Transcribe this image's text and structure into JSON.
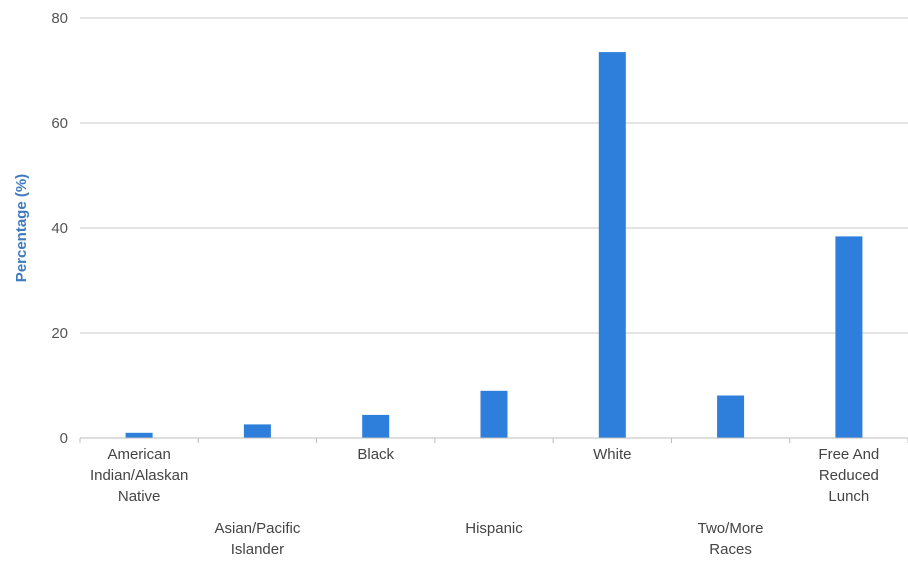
{
  "chart_data": {
    "type": "bar",
    "categories": [
      [
        "American",
        "Indian/Alaskan",
        "Native"
      ],
      [
        "Asian/Pacific",
        "Islander"
      ],
      [
        "Black"
      ],
      [
        "Hispanic"
      ],
      [
        "White"
      ],
      [
        "Two/More",
        "Races"
      ],
      [
        "Free And",
        "Reduced",
        "Lunch"
      ]
    ],
    "values": [
      1.0,
      2.6,
      4.4,
      9.0,
      73.5,
      8.1,
      38.4
    ],
    "title": "",
    "xlabel": "",
    "ylabel": "Percentage (%)",
    "ylim": [
      0,
      80
    ],
    "yticks": [
      0,
      20,
      40,
      60,
      80
    ],
    "grid": true,
    "colors": {
      "bar": "#2e7fdc",
      "ylabel": "#3f7abf",
      "grid": "#c8c8c8",
      "axis": "#bcbcbc"
    }
  }
}
